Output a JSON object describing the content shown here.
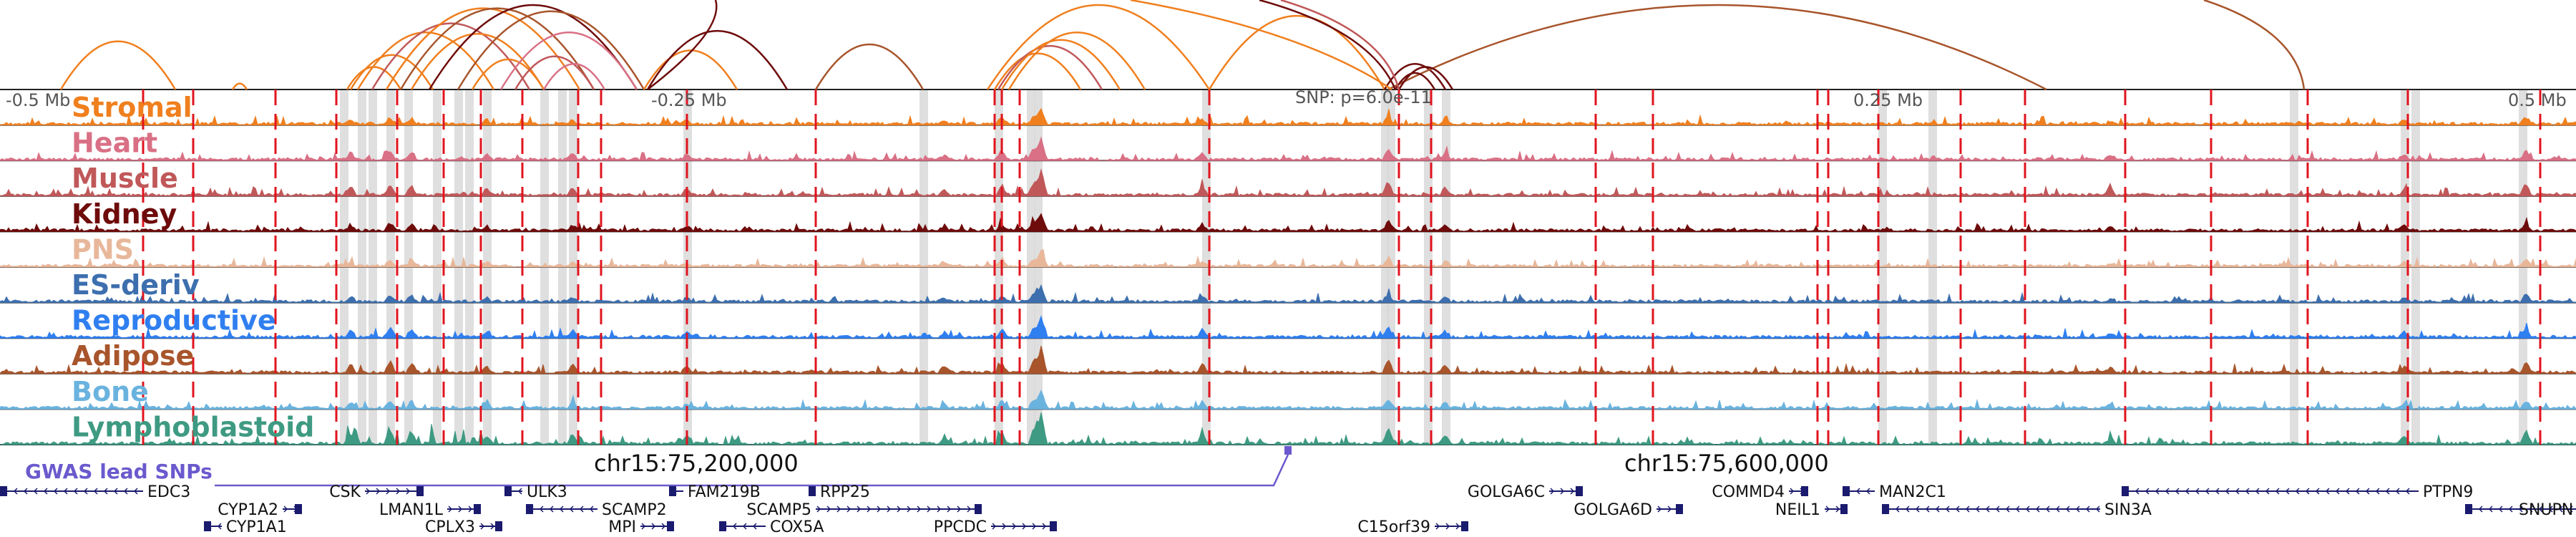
{
  "figure": {
    "tick_labels": [
      "-0.5 Mb",
      "-0.25 Mb",
      "0.25 Mb",
      "0.5 Mb"
    ],
    "snp_label": "SNP: p=6.0e-11",
    "coordinate_labels": [
      "chr15:75,200,000",
      "chr15:75,600,000"
    ],
    "gwas_label": "GWAS lead SNPs",
    "colors": {
      "gwas": "#6a5acd",
      "gene": "#1a1a6e",
      "dashed_line": "#e0141e",
      "highlight": "#d9d9d9"
    }
  },
  "tracks": [
    {
      "name": "Stromal",
      "color": "#f07f1e"
    },
    {
      "name": "Heart",
      "color": "#d97085"
    },
    {
      "name": "Muscle",
      "color": "#c0585a"
    },
    {
      "name": "Kidney",
      "color": "#6e0b0b"
    },
    {
      "name": "PNS",
      "color": "#e8b79a"
    },
    {
      "name": "ES-deriv",
      "color": "#3d6fae"
    },
    {
      "name": "Reproductive",
      "color": "#2f7ff0"
    },
    {
      "name": "Adipose",
      "color": "#a8552c"
    },
    {
      "name": "Bone",
      "color": "#6ab3df"
    },
    {
      "name": "Lymphoblastoid",
      "color": "#3e9a82"
    }
  ],
  "genes": [
    {
      "name": "EDC3",
      "strand": "-"
    },
    {
      "name": "CYP1A2",
      "strand": "+"
    },
    {
      "name": "CYP1A1",
      "strand": "-"
    },
    {
      "name": "CSK",
      "strand": "+"
    },
    {
      "name": "LMAN1L",
      "strand": "+"
    },
    {
      "name": "CPLX3",
      "strand": "+"
    },
    {
      "name": "ULK3",
      "strand": "-"
    },
    {
      "name": "SCAMP2",
      "strand": "-"
    },
    {
      "name": "MPI",
      "strand": "+"
    },
    {
      "name": "FAM219B",
      "strand": "-"
    },
    {
      "name": "COX5A",
      "strand": "-"
    },
    {
      "name": "RPP25",
      "strand": "-"
    },
    {
      "name": "SCAMP5",
      "strand": "+"
    },
    {
      "name": "PPCDC",
      "strand": "+"
    },
    {
      "name": "C15orf39",
      "strand": "+"
    },
    {
      "name": "GOLGA6C",
      "strand": "+"
    },
    {
      "name": "GOLGA6D",
      "strand": "+"
    },
    {
      "name": "COMMD4",
      "strand": "+"
    },
    {
      "name": "NEIL1",
      "strand": "+"
    },
    {
      "name": "MAN2C1",
      "strand": "-"
    },
    {
      "name": "SIN3A",
      "strand": "-"
    },
    {
      "name": "PTPN9",
      "strand": "-"
    },
    {
      "name": "SNUPN",
      "strand": "-"
    }
  ]
}
